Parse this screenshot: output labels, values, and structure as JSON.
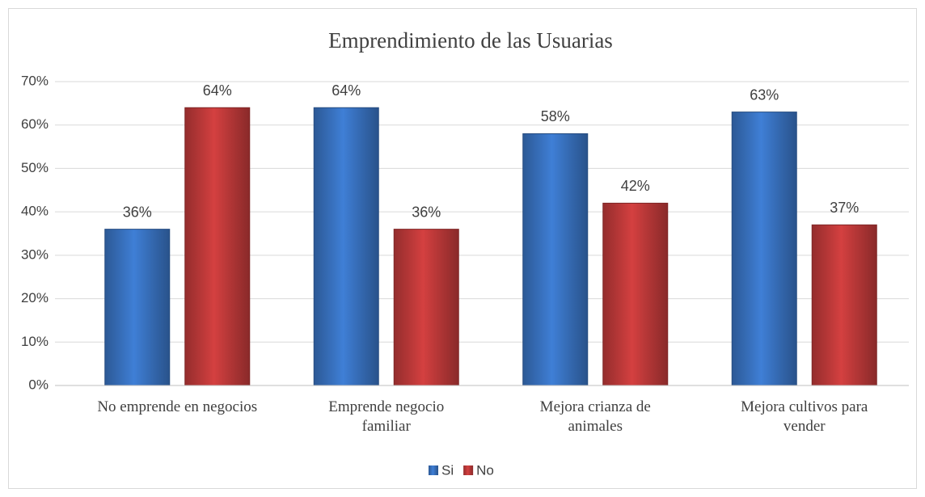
{
  "chart_data": {
    "type": "bar",
    "title": "Emprendimiento de las Usuarias",
    "categories": [
      "No emprende en negocios",
      "Emprende negocio familiar",
      "Mejora crianza de animales",
      "Mejora cultivos para vender"
    ],
    "series": [
      {
        "name": "Si",
        "color": "#3f7fd6",
        "values": [
          36,
          64,
          58,
          63
        ],
        "value_labels": [
          "36%",
          "64%",
          "58%",
          "63%"
        ]
      },
      {
        "name": "No",
        "color": "#d44040",
        "values": [
          64,
          36,
          42,
          37
        ],
        "value_labels": [
          "64%",
          "36%",
          "42%",
          "37%"
        ]
      }
    ],
    "ylim": [
      0,
      70
    ],
    "yticks": [
      {
        "value": 0,
        "label": "0%"
      },
      {
        "value": 10,
        "label": "10%"
      },
      {
        "value": 20,
        "label": "20%"
      },
      {
        "value": 30,
        "label": "30%"
      },
      {
        "value": 40,
        "label": "40%"
      },
      {
        "value": 50,
        "label": "50%"
      },
      {
        "value": 60,
        "label": "60%"
      },
      {
        "value": 70,
        "label": "70%"
      }
    ],
    "grid": true,
    "legend": "bottom"
  }
}
